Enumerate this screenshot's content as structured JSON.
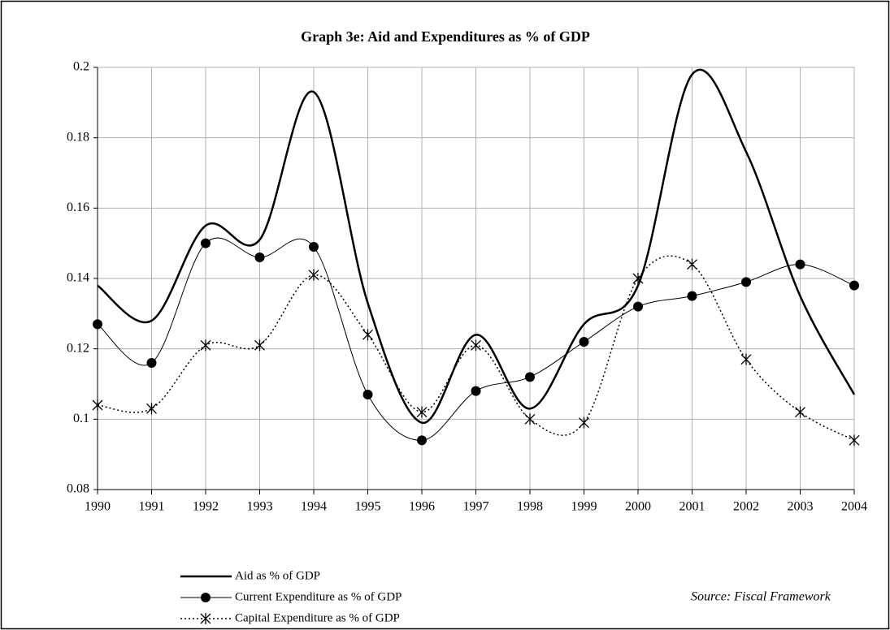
{
  "chart_data": {
    "type": "line",
    "title": "Graph 3e: Aid and Expenditures as % of GDP",
    "x": [
      1990,
      1991,
      1992,
      1993,
      1994,
      1995,
      1996,
      1997,
      1998,
      1999,
      2000,
      2001,
      2002,
      2003,
      2004
    ],
    "xlim": [
      1990,
      2004
    ],
    "xticks": [
      1990,
      1991,
      1992,
      1993,
      1994,
      1995,
      1996,
      1997,
      1998,
      1999,
      2000,
      2001,
      2002,
      2003,
      2004
    ],
    "ylim": [
      0.08,
      0.2
    ],
    "yticks": [
      0.08,
      0.1,
      0.12,
      0.14,
      0.16,
      0.18,
      0.2
    ],
    "grid": true,
    "smooth": true,
    "series": [
      {
        "name": "Aid as % of GDP",
        "color": "#000000",
        "marker": "none",
        "dash": "solid",
        "values": [
          0.138,
          0.128,
          0.155,
          0.151,
          0.193,
          0.133,
          0.099,
          0.124,
          0.103,
          0.127,
          0.138,
          0.198,
          0.176,
          0.135,
          0.107
        ]
      },
      {
        "name": "Current Expenditure as % of GDP",
        "color": "#000000",
        "marker": "circle",
        "dash": "solid",
        "values": [
          0.127,
          0.116,
          0.15,
          0.146,
          0.149,
          0.107,
          0.094,
          0.108,
          0.112,
          0.122,
          0.132,
          0.135,
          0.139,
          0.144,
          0.138
        ]
      },
      {
        "name": "Capital Expenditure as % of GDP",
        "color": "#000000",
        "marker": "asterisk",
        "dash": "dotted",
        "values": [
          0.104,
          0.103,
          0.121,
          0.121,
          0.141,
          0.124,
          0.102,
          0.121,
          0.1,
          0.099,
          0.14,
          0.144,
          0.117,
          0.102,
          0.094
        ]
      }
    ],
    "annotation": "Source: Fiscal Framework"
  }
}
